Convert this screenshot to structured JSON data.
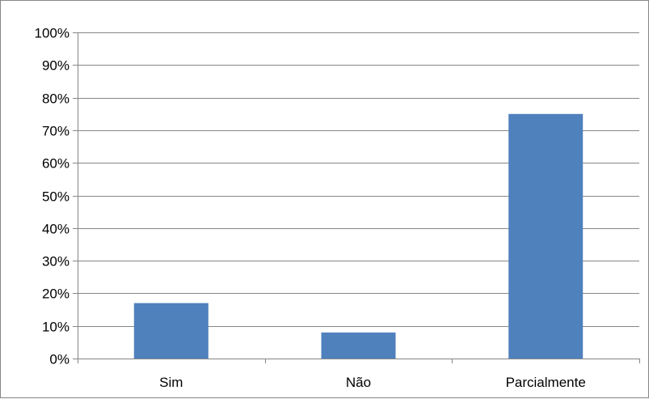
{
  "chart_data": {
    "type": "bar",
    "title": "",
    "xlabel": "",
    "ylabel": "",
    "categories": [
      "Sim",
      "Não",
      "Parcialmente"
    ],
    "values": [
      17,
      8,
      75
    ],
    "value_format": "percent",
    "ylim": [
      0,
      100
    ],
    "yticks": [
      "0%",
      "10%",
      "20%",
      "30%",
      "40%",
      "50%",
      "60%",
      "70%",
      "80%",
      "90%",
      "100%"
    ],
    "grid": true,
    "legend": "none",
    "colors": {
      "bar": "#4f81bd",
      "gridline": "#868686",
      "axis": "#868686",
      "text": "#000000"
    }
  }
}
